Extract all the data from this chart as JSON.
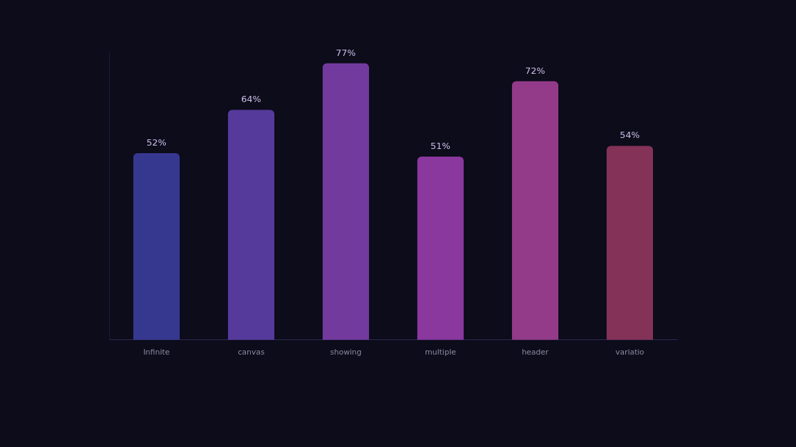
{
  "chart_data": {
    "type": "bar",
    "categories": [
      "Infinite",
      "canvas",
      "showing",
      "multiple",
      "header",
      "variatio"
    ],
    "values": [
      52,
      64,
      77,
      51,
      72,
      54
    ],
    "colors": [
      "#363890",
      "#553a9c",
      "#733a9e",
      "#8a379e",
      "#933a88",
      "#843258"
    ],
    "value_labels": [
      "52%",
      "64%",
      "77%",
      "51%",
      "72%",
      "54%"
    ],
    "grid": false,
    "legend": false
  }
}
